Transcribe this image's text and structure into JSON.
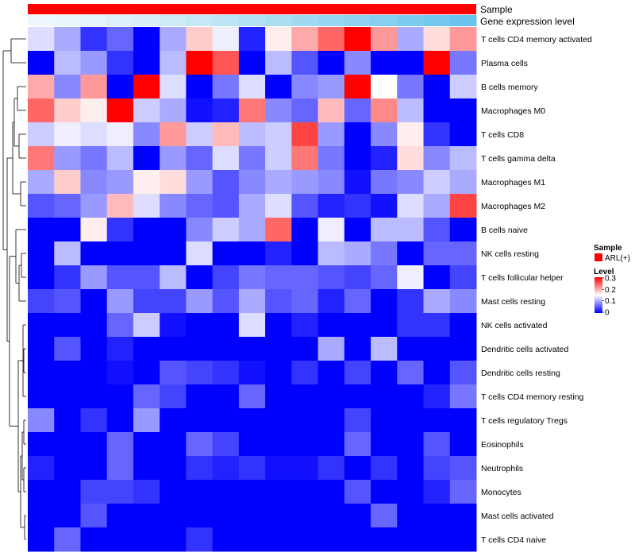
{
  "chart_data": {
    "type": "heatmap",
    "annotation_bars": [
      {
        "label": "Sample"
      },
      {
        "label": "Gene expression level"
      }
    ],
    "rows": [
      "T cells CD4 memory activated",
      "Plasma cells",
      "B cells memory",
      "Macrophages M0",
      "T cells CD8",
      "T cells gamma delta",
      "Macrophages M1",
      "Macrophages M2",
      "B cells naive",
      "NK cells resting",
      "T cells follicular helper",
      "Mast cells resting",
      "NK cells activated",
      "Dendritic cells activated",
      "Dendritic cells resting",
      "T cells CD4 memory resting",
      "T cells regulatory  Tregs",
      "Eosinophils",
      "Neutrophils",
      "Monocytes",
      "Mast cells activated",
      "T cells CD4 naive"
    ],
    "n_columns": 17,
    "values": [
      [
        0.13,
        0.1,
        0.03,
        0.06,
        0.0,
        0.1,
        0.18,
        0.14,
        0.02,
        0.16,
        0.2,
        0.24,
        0.3,
        0.21,
        0.1,
        0.17,
        0.21
      ],
      [
        0.0,
        0.11,
        0.09,
        0.03,
        0.0,
        0.11,
        0.3,
        0.25,
        0.0,
        0.11,
        0.05,
        0.0,
        0.08,
        0.0,
        0.0,
        0.3,
        0.07
      ],
      [
        0.2,
        0.08,
        0.21,
        0.0,
        0.3,
        0.13,
        0.0,
        0.07,
        0.13,
        0.0,
        0.08,
        0.09,
        0.3,
        0.15,
        0.07,
        0.0,
        0.12
      ],
      [
        0.24,
        0.18,
        0.16,
        0.3,
        0.12,
        0.1,
        0.01,
        0.02,
        0.23,
        0.08,
        0.06,
        0.19,
        0.06,
        0.22,
        0.11,
        0.0,
        0.0
      ],
      [
        0.12,
        0.14,
        0.13,
        0.14,
        0.08,
        0.21,
        0.12,
        0.19,
        0.11,
        0.12,
        0.26,
        0.09,
        0.0,
        0.08,
        0.16,
        0.03,
        0.0
      ],
      [
        0.23,
        0.09,
        0.07,
        0.11,
        0.0,
        0.09,
        0.06,
        0.13,
        0.07,
        0.12,
        0.23,
        0.07,
        0.0,
        0.02,
        0.17,
        0.08,
        0.11
      ],
      [
        0.1,
        0.18,
        0.08,
        0.09,
        0.16,
        0.17,
        0.09,
        0.05,
        0.08,
        0.1,
        0.09,
        0.08,
        0.01,
        0.07,
        0.08,
        0.12,
        0.1
      ],
      [
        0.05,
        0.06,
        0.09,
        0.19,
        0.13,
        0.08,
        0.06,
        0.05,
        0.1,
        0.13,
        0.05,
        0.02,
        0.03,
        0.01,
        0.13,
        0.1,
        0.26
      ],
      [
        0.0,
        0.0,
        0.16,
        0.03,
        0.0,
        0.0,
        0.08,
        0.12,
        0.1,
        0.24,
        0.0,
        0.14,
        0.0,
        0.11,
        0.11,
        0.05,
        0.0
      ],
      [
        0.0,
        0.11,
        0.0,
        0.0,
        0.0,
        0.0,
        0.13,
        0.0,
        0.0,
        0.02,
        0.0,
        0.11,
        0.1,
        0.07,
        0.0,
        0.06,
        0.06
      ],
      [
        0.0,
        0.03,
        0.09,
        0.05,
        0.05,
        0.11,
        0.0,
        0.04,
        0.07,
        0.06,
        0.06,
        0.05,
        0.04,
        0.06,
        0.14,
        0.0,
        0.04
      ],
      [
        0.04,
        0.05,
        0.0,
        0.09,
        0.04,
        0.04,
        0.09,
        0.05,
        0.1,
        0.05,
        0.06,
        0.02,
        0.06,
        0.0,
        0.03,
        0.1,
        0.08
      ],
      [
        0.0,
        0.0,
        0.0,
        0.06,
        0.12,
        0.01,
        0.0,
        0.0,
        0.13,
        0.0,
        0.02,
        0.0,
        0.0,
        0.0,
        0.03,
        0.03,
        0.0
      ],
      [
        0.0,
        0.05,
        0.0,
        0.02,
        0.0,
        0.0,
        0.0,
        0.0,
        0.0,
        0.0,
        0.0,
        0.1,
        0.0,
        0.11,
        0.0,
        0.0,
        0.0
      ],
      [
        0.0,
        0.0,
        0.0,
        0.01,
        0.0,
        0.05,
        0.04,
        0.03,
        0.01,
        0.0,
        0.03,
        0.0,
        0.04,
        0.0,
        0.06,
        0.0,
        0.05
      ],
      [
        0.0,
        0.0,
        0.0,
        0.0,
        0.06,
        0.04,
        0.0,
        0.0,
        0.06,
        0.0,
        0.0,
        0.0,
        0.0,
        0.0,
        0.0,
        0.02,
        0.07
      ],
      [
        0.08,
        0.0,
        0.03,
        0.0,
        0.09,
        0.0,
        0.0,
        0.0,
        0.0,
        0.0,
        0.0,
        0.0,
        0.04,
        0.0,
        0.0,
        0.0,
        0.0
      ],
      [
        0.0,
        0.0,
        0.0,
        0.06,
        0.0,
        0.0,
        0.06,
        0.04,
        0.0,
        0.0,
        0.0,
        0.0,
        0.06,
        0.0,
        0.0,
        0.05,
        0.0
      ],
      [
        0.02,
        0.0,
        0.0,
        0.06,
        0.0,
        0.0,
        0.03,
        0.02,
        0.03,
        0.01,
        0.01,
        0.03,
        0.0,
        0.03,
        0.0,
        0.04,
        0.05
      ],
      [
        0.0,
        0.0,
        0.04,
        0.04,
        0.03,
        0.0,
        0.0,
        0.0,
        0.0,
        0.0,
        0.0,
        0.0,
        0.05,
        0.0,
        0.0,
        0.02,
        0.06
      ],
      [
        0.0,
        0.0,
        0.05,
        0.0,
        0.0,
        0.0,
        0.0,
        0.0,
        0.0,
        0.0,
        0.0,
        0.0,
        0.0,
        0.06,
        0.0,
        0.0,
        0.0
      ],
      [
        0.0,
        0.06,
        0.0,
        0.0,
        0.0,
        0.0,
        0.03,
        0.0,
        0.0,
        0.0,
        0.0,
        0.0,
        0.0,
        0.0,
        0.0,
        0.0,
        0.0
      ]
    ],
    "color_scale": {
      "min": 0,
      "max": 0.3,
      "low": "#0000ff",
      "mid": "#ffffff",
      "high": "#ff0000",
      "midpoint": 0.15
    },
    "expression_level_colors": [
      "#eef8fc",
      "#e9f6fb",
      "#e3f4fa",
      "#dcf1f9",
      "#d6eff8",
      "#cdecf7",
      "#c4e8f6",
      "#bce5f5",
      "#b3e2f4",
      "#a9def3",
      "#a0daf2",
      "#98d7f1",
      "#8fd3f0",
      "#85cff0",
      "#7ccbef",
      "#72c7ee",
      "#69c3ed"
    ],
    "legend": {
      "sample": {
        "title": "Sample",
        "entry": "ARL(+)",
        "color": "#ff0000"
      },
      "level": {
        "title": "Level",
        "ticks": [
          "0.3",
          "0.2",
          "0.1",
          "0"
        ]
      }
    }
  }
}
